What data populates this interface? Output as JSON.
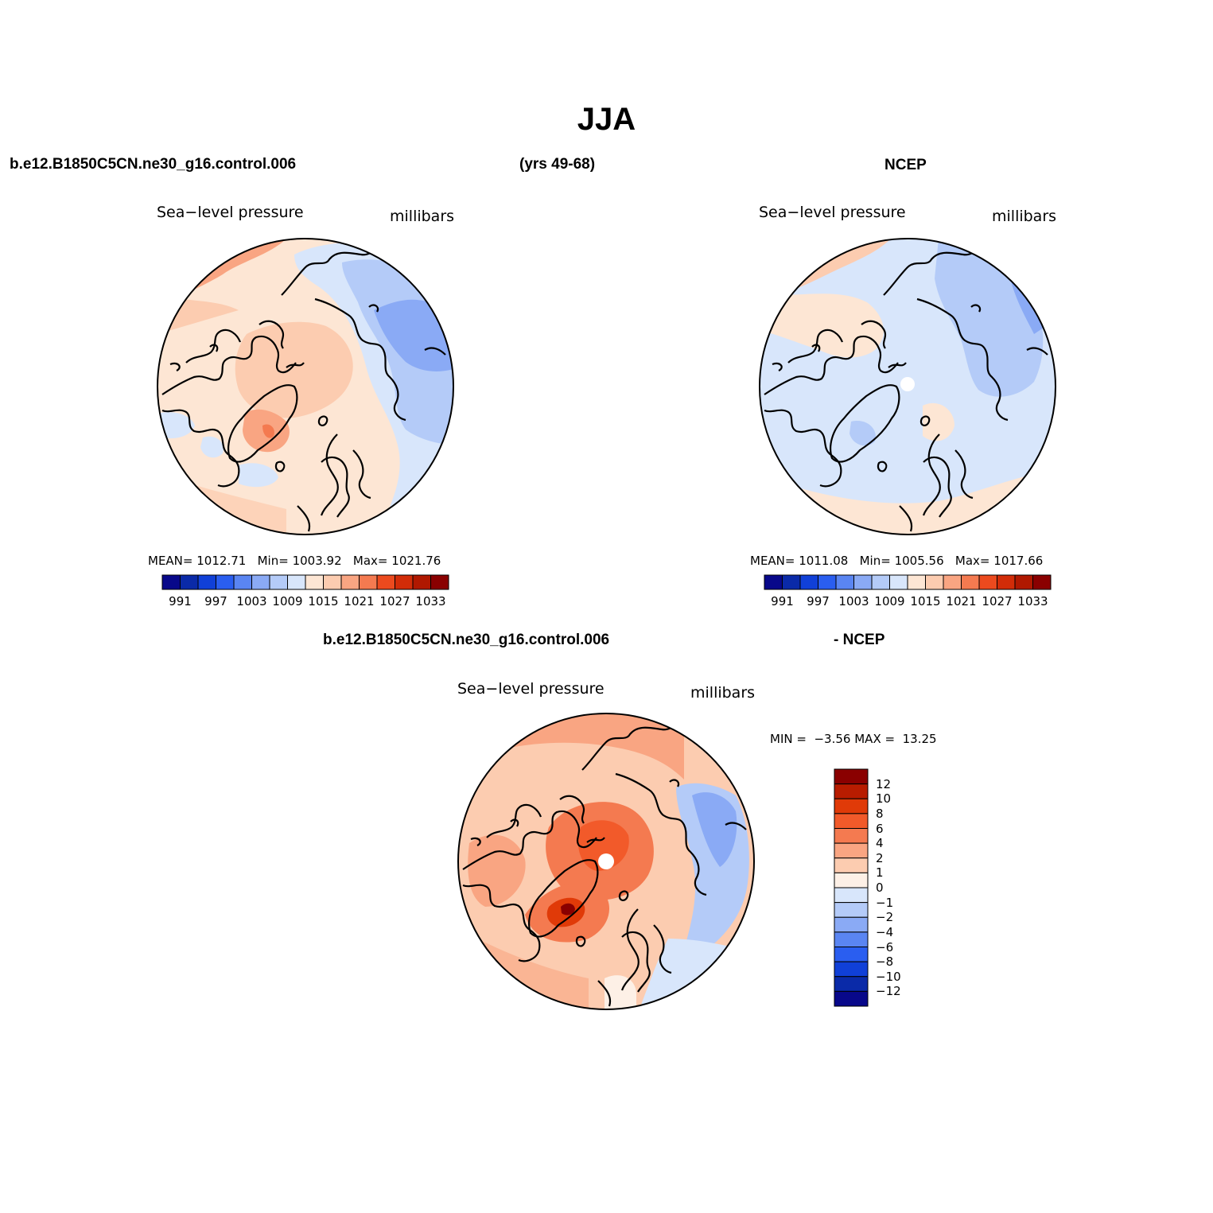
{
  "figure": {
    "title": "JJA"
  },
  "header_top": {
    "case": "b.e12.B1850C5CN.ne30_g16.control.006",
    "years": "(yrs 49-68)",
    "obs": "NCEP"
  },
  "header_diff": {
    "case": "b.e12.B1850C5CN.ne30_g16.control.006",
    "minus_obs": "- NCEP"
  },
  "panels": {
    "model": {
      "variable": "Sea−level pressure",
      "units": "millibars",
      "mean_label": "MEAN=",
      "mean": "1012.71",
      "min_label": "Min=",
      "min": "1003.92",
      "max_label": "Max=",
      "max": "1021.76"
    },
    "obs": {
      "variable": "Sea−level pressure",
      "units": "millibars",
      "mean_label": "MEAN=",
      "mean": "1011.08",
      "min_label": "Min=",
      "min": "1005.56",
      "max_label": "Max=",
      "max": "1017.66"
    },
    "diff": {
      "variable": "Sea−level pressure",
      "units": "millibars",
      "min_label": "MIN =",
      "min": "−3.56",
      "max_label": "MAX =",
      "max": "13.25"
    }
  },
  "colorbar_abs": {
    "colors": [
      "#08088a",
      "#0a2aa8",
      "#1040d8",
      "#2a5ef0",
      "#5a85f2",
      "#8aaaf5",
      "#b4cbf8",
      "#d8e6fb",
      "#fde6d4",
      "#fcccb0",
      "#f9a582",
      "#f47a50",
      "#ec4a1e",
      "#d22c08",
      "#b01800",
      "#8a0000"
    ],
    "labels": [
      "991",
      "997",
      "1003",
      "1009",
      "1015",
      "1021",
      "1027",
      "1033"
    ]
  },
  "colorbar_diff": {
    "colors": [
      "#08088a",
      "#0a2aa8",
      "#1040d8",
      "#2a5ef0",
      "#5a85f2",
      "#8aaaf5",
      "#b4cbf8",
      "#d8e6fb",
      "#fdf0e6",
      "#fcccb0",
      "#f9a582",
      "#f47a50",
      "#f25a2a",
      "#e03a08",
      "#b81c00",
      "#8a0000"
    ],
    "labels": [
      "12",
      "10",
      "8",
      "6",
      "4",
      "2",
      "1",
      "0",
      "−1",
      "−2",
      "−4",
      "−6",
      "−8",
      "−10",
      "−12"
    ]
  }
}
